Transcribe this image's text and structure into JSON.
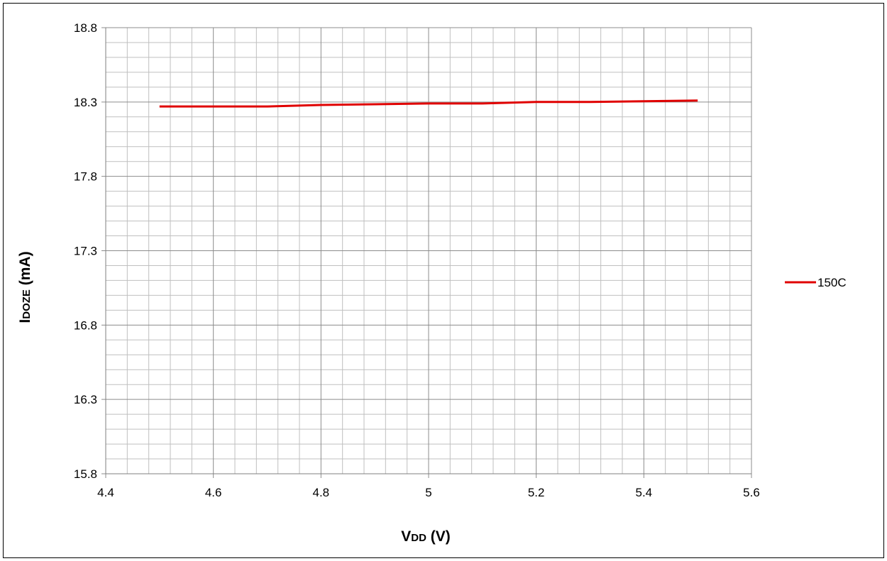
{
  "chart_data": {
    "type": "line",
    "title": "",
    "xlabel_main": "V",
    "xlabel_sub": "DD",
    "xlabel_unit": " (V)",
    "ylabel_main": "I",
    "ylabel_sub": "DOZE",
    "ylabel_unit": " (mA)",
    "xlim": [
      4.4,
      5.6
    ],
    "ylim": [
      15.8,
      18.8
    ],
    "x_ticks": [
      "4.4",
      "4.6",
      "4.8",
      "5",
      "5.2",
      "5.4",
      "5.6"
    ],
    "y_ticks": [
      "15.8",
      "16.3",
      "16.8",
      "17.3",
      "17.8",
      "18.3",
      "18.8"
    ],
    "grid": true,
    "legend_position": "right",
    "series": [
      {
        "name": "150C",
        "color": "#e00000",
        "x": [
          4.5,
          4.6,
          4.7,
          4.8,
          4.9,
          5.0,
          5.1,
          5.2,
          5.3,
          5.4,
          5.5
        ],
        "y": [
          18.27,
          18.27,
          18.27,
          18.28,
          18.285,
          18.29,
          18.29,
          18.3,
          18.3,
          18.305,
          18.31
        ]
      }
    ]
  }
}
